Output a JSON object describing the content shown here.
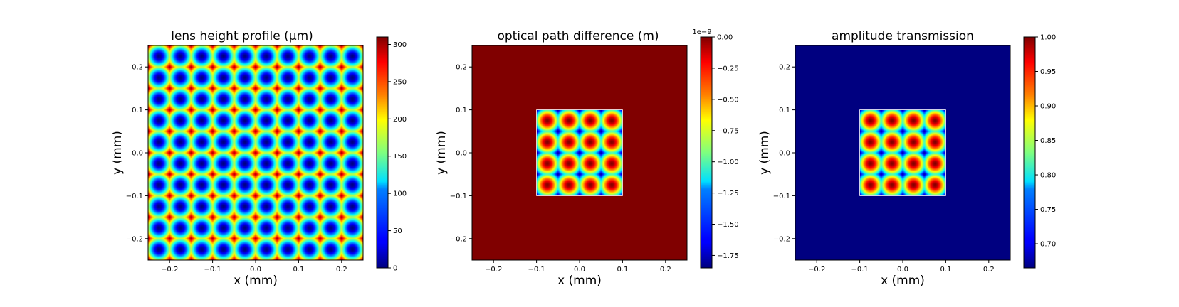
{
  "figure": {
    "background": "#ffffff",
    "colormap": "jet"
  },
  "chart_data": [
    {
      "type": "heatmap",
      "title": "lens height profile (μm)",
      "xlabel": "x (mm)",
      "ylabel": "y (mm)",
      "xlim": [
        -0.25,
        0.25
      ],
      "ylim": [
        -0.25,
        0.25
      ],
      "xticks": [
        -0.2,
        -0.1,
        0.0,
        0.1,
        0.2
      ],
      "yticks": [
        -0.2,
        -0.1,
        0.0,
        0.1,
        0.2
      ],
      "xtick_labels": [
        "−0.2",
        "−0.1",
        "0.0",
        "0.1",
        "0.2"
      ],
      "ytick_labels": [
        "−0.2",
        "−0.1",
        "0.0",
        "0.1",
        "0.2"
      ],
      "pattern": "square lenslet array covering full field, 10 × 10 lenslets, pitch 0.05 mm",
      "lens_region": [
        -0.25,
        0.25
      ],
      "lenslet_pitch": 0.05,
      "value_range": [
        0,
        310
      ],
      "colorbar": {
        "ticks": [
          0,
          50,
          100,
          150,
          200,
          250,
          300
        ],
        "tick_labels": [
          "0",
          "50",
          "100",
          "150",
          "200",
          "250",
          "300"
        ],
        "range": [
          0,
          310
        ],
        "offset_label": ""
      }
    },
    {
      "type": "heatmap",
      "title": "optical path difference (m)",
      "xlabel": "x (mm)",
      "ylabel": "y (mm)",
      "xlim": [
        -0.25,
        0.25
      ],
      "ylim": [
        -0.25,
        0.25
      ],
      "xticks": [
        -0.2,
        -0.1,
        0.0,
        0.1,
        0.2
      ],
      "yticks": [
        -0.2,
        -0.1,
        0.0,
        0.1,
        0.2
      ],
      "xtick_labels": [
        "−0.2",
        "−0.1",
        "0.0",
        "0.1",
        "0.2"
      ],
      "ytick_labels": [
        "−0.2",
        "−0.1",
        "0.0",
        "0.1",
        "0.2"
      ],
      "pattern": "4 × 4 lenslets in central aperture [-0.1, 0.1] mm, outside value 0",
      "lens_region": [
        -0.1,
        0.1
      ],
      "lenslet_pitch": 0.05,
      "value_range": [
        -1.85e-09,
        0.0
      ],
      "colorbar": {
        "ticks": [
          0.0,
          -0.25,
          -0.5,
          -0.75,
          -1.0,
          -1.25,
          -1.5,
          -1.75
        ],
        "tick_labels": [
          "0.00",
          "−0.25",
          "−0.50",
          "−0.75",
          "−1.00",
          "−1.25",
          "−1.50",
          "−1.75"
        ],
        "range": [
          -1.85,
          0.0
        ],
        "offset_label": "1e−9"
      }
    },
    {
      "type": "heatmap",
      "title": "amplitude transmission",
      "xlabel": "x (mm)",
      "ylabel": "y (mm)",
      "xlim": [
        -0.25,
        0.25
      ],
      "ylim": [
        -0.25,
        0.25
      ],
      "xticks": [
        -0.2,
        -0.1,
        0.0,
        0.1,
        0.2
      ],
      "yticks": [
        -0.2,
        -0.1,
        0.0,
        0.1,
        0.2
      ],
      "xtick_labels": [
        "−0.2",
        "−0.1",
        "0.0",
        "0.1",
        "0.2"
      ],
      "ytick_labels": [
        "−0.2",
        "−0.1",
        "0.0",
        "0.1",
        "0.2"
      ],
      "pattern": "4 × 4 lenslets in central aperture [-0.1, 0.1] mm, outside value at minimum",
      "lens_region": [
        -0.1,
        0.1
      ],
      "lenslet_pitch": 0.05,
      "value_range": [
        0.665,
        1.0
      ],
      "colorbar": {
        "ticks": [
          0.7,
          0.75,
          0.8,
          0.85,
          0.9,
          0.95,
          1.0
        ],
        "tick_labels": [
          "0.70",
          "0.75",
          "0.80",
          "0.85",
          "0.90",
          "0.95",
          "1.00"
        ],
        "range": [
          0.665,
          1.0
        ],
        "offset_label": ""
      }
    }
  ]
}
